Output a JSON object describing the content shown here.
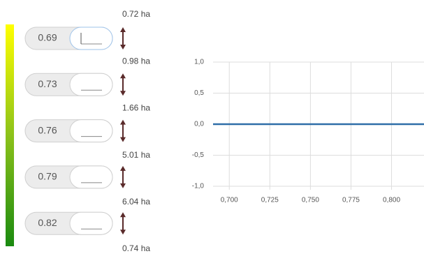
{
  "classes": [
    0.69,
    0.73,
    0.76,
    0.79,
    0.82
  ],
  "areas": [
    "0.72 ha",
    "0.98 ha",
    "1.66 ha",
    "5.01 ha",
    "6.04 ha",
    "0.74 ha"
  ],
  "chart_data": {
    "type": "line",
    "x": [
      0.69,
      0.82
    ],
    "series": [
      {
        "color": "#2f6ea8",
        "values": [
          0,
          0
        ]
      }
    ],
    "xlim": [
      0.69,
      0.82
    ],
    "ylim": [
      -1,
      1
    ],
    "xticks": [
      {
        "value": 0.7,
        "label": "0,700"
      },
      {
        "value": 0.725,
        "label": "0,725"
      },
      {
        "value": 0.75,
        "label": "0,750"
      },
      {
        "value": 0.775,
        "label": "0,775"
      },
      {
        "value": 0.8,
        "label": "0,800"
      }
    ],
    "yticks": [
      {
        "value": 1,
        "label": "1,0"
      },
      {
        "value": 0.5,
        "label": "0,5"
      },
      {
        "value": 0,
        "label": "0,0"
      },
      {
        "value": -0.5,
        "label": "-0,5"
      },
      {
        "value": -1,
        "label": "-1,0"
      }
    ],
    "grid": true
  }
}
